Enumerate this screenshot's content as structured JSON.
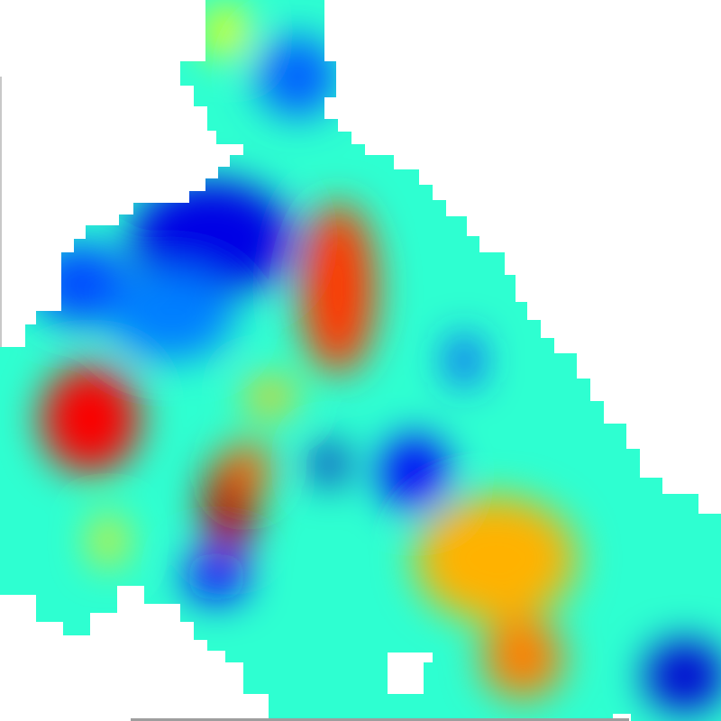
{
  "map": {
    "type": "interpolated heat map",
    "colormap": "jet",
    "background_color": "#ffffff",
    "colormap_stops": [
      "#00007f",
      "#0000ff",
      "#007fff",
      "#00ffff",
      "#7fff7f",
      "#ffff00",
      "#ff7f00",
      "#ff0000",
      "#7f0000"
    ],
    "base_level": 0.42,
    "hotspots": [
      {
        "kind": "high",
        "level": 0.88
      },
      {
        "kind": "high",
        "level": 0.95
      },
      {
        "kind": "high",
        "level": 0.82
      },
      {
        "kind": "high",
        "level": 0.78
      },
      {
        "kind": "high",
        "level": 0.75
      },
      {
        "kind": "high",
        "level": 0.68
      },
      {
        "kind": "high",
        "level": 0.65
      },
      {
        "kind": "high",
        "level": 0.7
      },
      {
        "kind": "high",
        "level": 0.62
      },
      {
        "kind": "low",
        "level": 0.06
      },
      {
        "kind": "low",
        "level": 0.08
      },
      {
        "kind": "low",
        "level": 0.12
      },
      {
        "kind": "low",
        "level": 0.1
      },
      {
        "kind": "low",
        "level": 0.14
      },
      {
        "kind": "low",
        "level": 0.18
      },
      {
        "kind": "low",
        "level": 0.2
      },
      {
        "kind": "low",
        "level": 0.22
      },
      {
        "kind": "low",
        "level": 0.25
      }
    ]
  }
}
